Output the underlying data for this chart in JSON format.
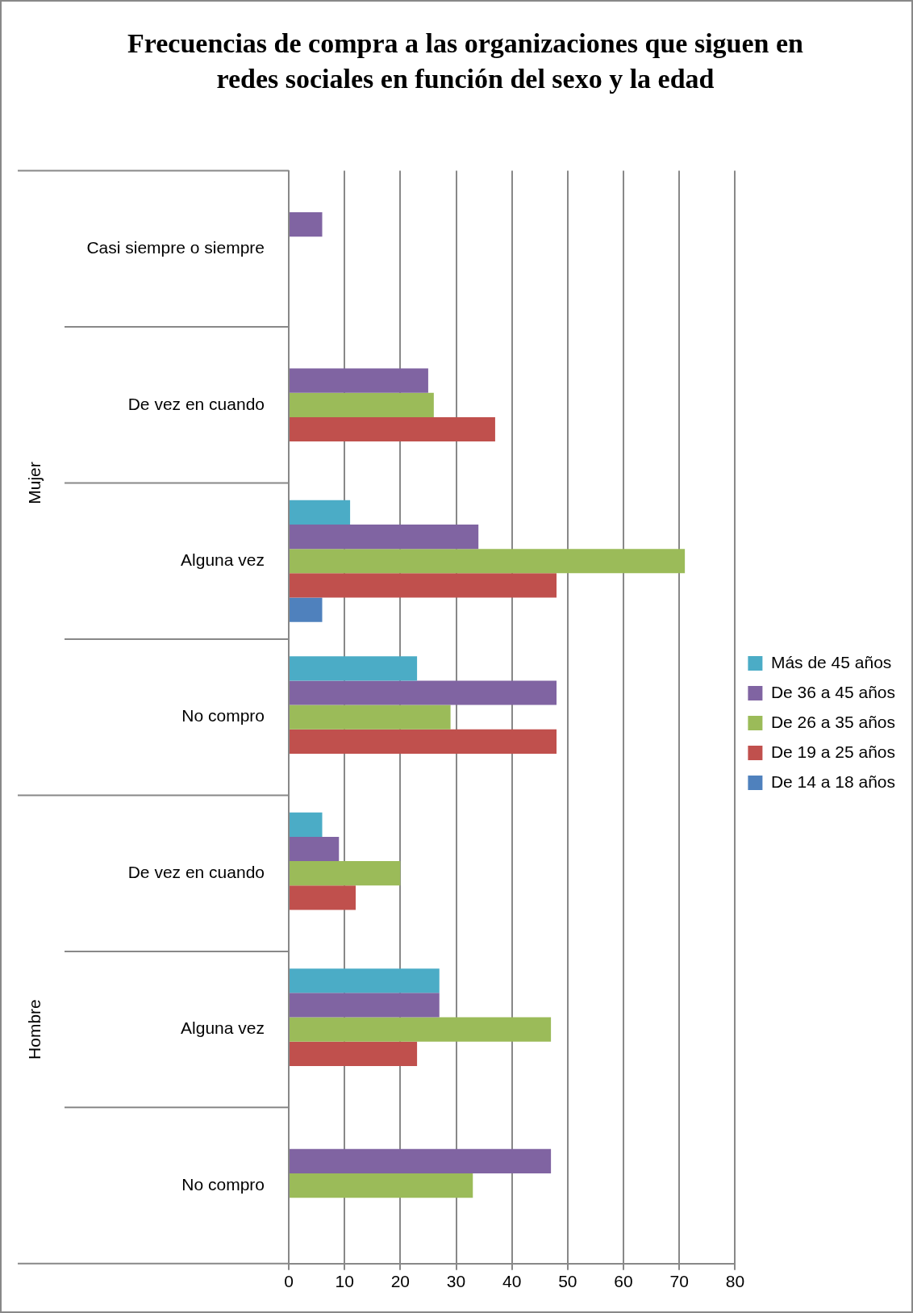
{
  "chart_data": {
    "type": "bar",
    "orientation": "horizontal",
    "title": "Frecuencias de compra a las organizaciones que siguen en redes sociales en función del sexo y la edad",
    "categories": [
      "Casi siempre o siempre",
      "De vez en cuando",
      "Alguna vez",
      "No compro",
      "De vez en cuando",
      "Alguna vez",
      "No compro"
    ],
    "annotations": [
      "Mujer",
      "Hombre"
    ],
    "series": [
      {
        "name": "Más de 45 años",
        "color": "#4bacc6",
        "values": [
          null,
          null,
          11,
          23,
          6,
          27,
          null
        ]
      },
      {
        "name": "De 36 a 45 años",
        "color": "#8064a2",
        "values": [
          6,
          25,
          34,
          48,
          9,
          27,
          47
        ]
      },
      {
        "name": "De 26 a 35 años",
        "color": "#9bbb59",
        "values": [
          null,
          26,
          71,
          29,
          20,
          47,
          33
        ]
      },
      {
        "name": "De 19 a 25 años",
        "color": "#c0504d",
        "values": [
          null,
          37,
          48,
          48,
          12,
          23,
          null
        ]
      },
      {
        "name": "De 14 a 18 años",
        "color": "#4f81bd",
        "values": [
          null,
          null,
          6,
          null,
          null,
          null,
          null
        ]
      }
    ],
    "xlim": [
      0,
      80
    ],
    "xticks": [
      0,
      10,
      20,
      30,
      40,
      50,
      60,
      70,
      80
    ],
    "grid": "x",
    "legend": "right"
  }
}
